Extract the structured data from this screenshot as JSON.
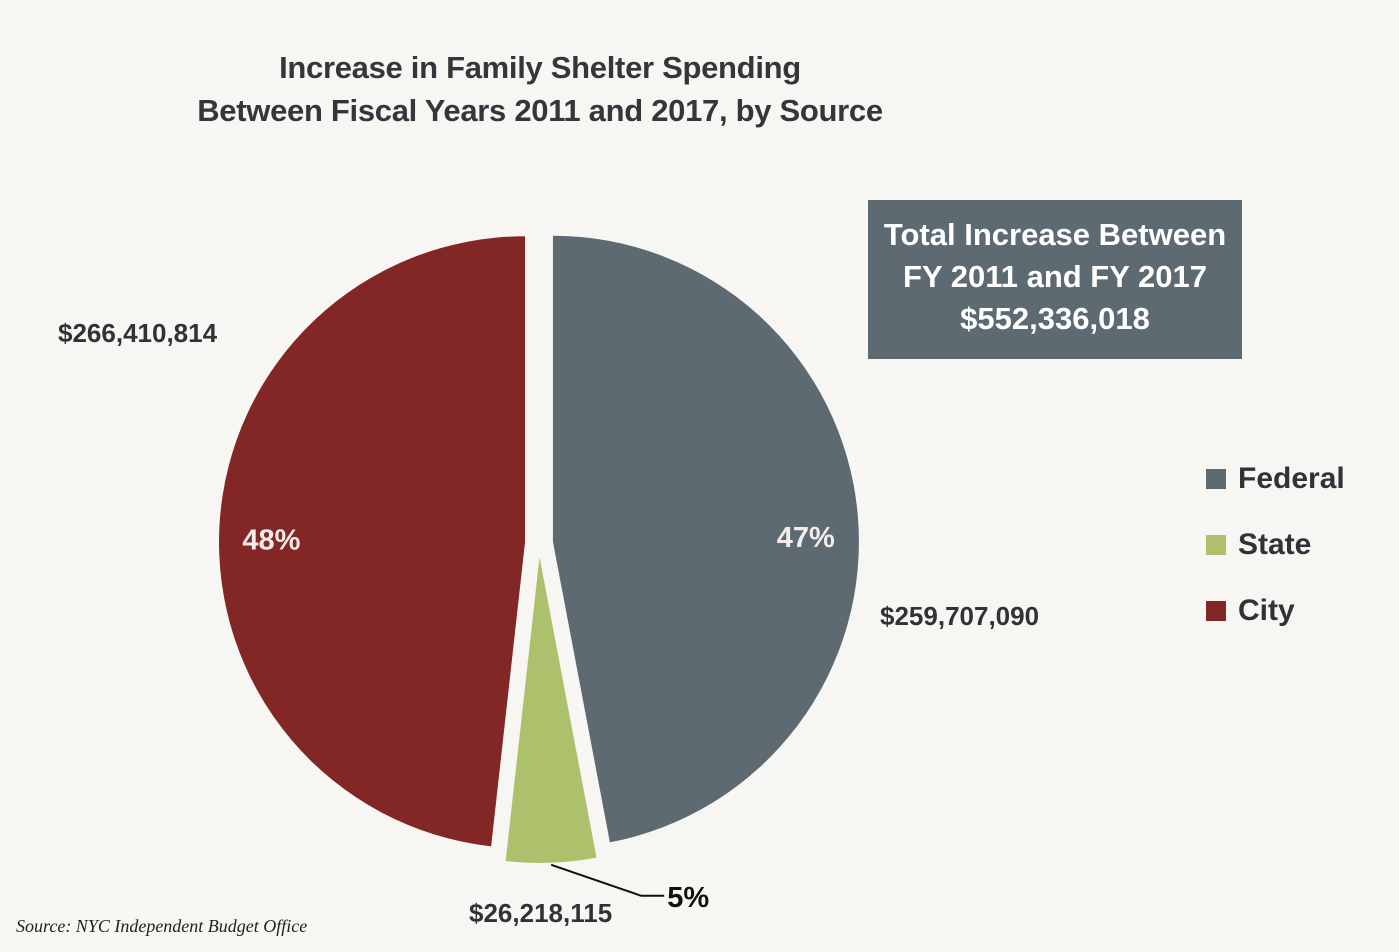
{
  "chart_data": {
    "type": "pie",
    "title": "Increase in Family Shelter Spending Between Fiscal Years 2011 and 2017, by Source",
    "title_lines": [
      "Increase in Family Shelter Spending",
      "Between Fiscal Years 2011 and 2017, by Source"
    ],
    "slices": [
      {
        "name": "Federal",
        "value": 259707090,
        "amount_label": "$259,707,090",
        "percent_label": "47%",
        "color": "#5d6a72"
      },
      {
        "name": "State",
        "value": 26218115,
        "amount_label": "$26,218,115",
        "percent_label": "5%",
        "color": "#adc06c"
      },
      {
        "name": "City",
        "value": 266410814,
        "amount_label": "$266,410,814",
        "percent_label": "48%",
        "color": "#832626"
      }
    ],
    "exploded": true,
    "legend": {
      "position": "right",
      "entries": [
        "Federal",
        "State",
        "City"
      ]
    },
    "total_box": {
      "lines": [
        "Total Increase Between",
        "FY 2011 and FY 2017",
        "$552,336,018"
      ],
      "total_value": 552336018,
      "color": "#5d6a72"
    },
    "source": "Source:  NYC Independent Budget Office"
  }
}
